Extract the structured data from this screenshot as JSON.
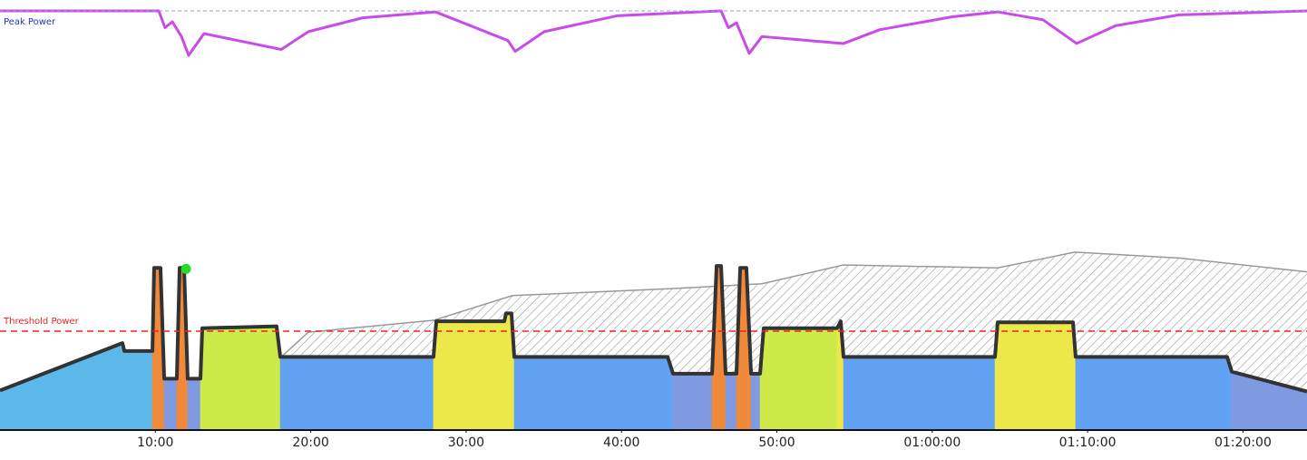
{
  "chart_data": {
    "type": "area",
    "xlim": [
      0,
      84.12
    ],
    "ylim": [
      0,
      435
    ],
    "xticks": [
      {
        "value": 10,
        "label": "10:00"
      },
      {
        "value": 20,
        "label": "20:00"
      },
      {
        "value": 30,
        "label": "30:00"
      },
      {
        "value": 40,
        "label": "40:00"
      },
      {
        "value": 50,
        "label": "50:00"
      },
      {
        "value": 60,
        "label": "01:00:00"
      },
      {
        "value": 70,
        "label": "01:10:00"
      },
      {
        "value": 80,
        "label": "01:20:00"
      }
    ],
    "reference_lines": [
      {
        "label": "Peak Power",
        "value": 424,
        "color": "#9aa0c8",
        "label_color": "#2233cc"
      },
      {
        "label": "Threshold Power",
        "value": 100,
        "color": "#ee2222",
        "label_color": "#ee2222"
      }
    ],
    "series": [
      {
        "style": "hatch",
        "color": "#999999",
        "x": [
          18.1,
          19.85,
          27.9,
          32.98,
          43.2,
          49.04,
          54.29,
          64.21,
          69.18,
          75.89,
          84.12
        ],
        "values": [
          74,
          99,
          111,
          136,
          143,
          148,
          167,
          164,
          180,
          174,
          160
        ]
      },
      {
        "style": "zones",
        "color": "#333333",
        "x": [
          0,
          7.88,
          8.0,
          9.81,
          9.92,
          10.33,
          10.57,
          11.38,
          11.56,
          11.85,
          12.08,
          12.9,
          13.02,
          17.8,
          18.04,
          27.9,
          28.08,
          32.46,
          32.57,
          32.92,
          33.1,
          42.97,
          43.32,
          45.83,
          46.12,
          46.41,
          46.7,
          47.4,
          47.64,
          48.04,
          48.34,
          48.92,
          49.15,
          53.88,
          54.11,
          54.29,
          64.04,
          64.21,
          69.06,
          69.23,
          78.98,
          79.28,
          84.12
        ],
        "values": [
          40,
          88,
          80,
          80,
          164,
          164,
          52,
          52,
          164,
          164,
          52,
          52,
          103,
          105,
          74,
          74,
          110,
          110,
          118,
          118,
          74,
          74,
          57,
          57,
          166,
          166,
          57,
          57,
          164,
          164,
          57,
          57,
          103,
          103,
          110,
          74,
          74,
          109,
          109,
          74,
          74,
          59,
          39
        ]
      },
      {
        "style": "line",
        "color": "#c84ce8",
        "x": [
          0,
          10.22,
          10.62,
          11.09,
          11.68,
          12.14,
          13.13,
          18.1,
          19.85,
          23.35,
          28.02,
          32.69,
          33.16,
          35.03,
          39.7,
          46.41,
          46.88,
          47.4,
          48.22,
          49.04,
          54.29,
          56.63,
          61.3,
          64.21,
          67.13,
          69.29,
          71.8,
          75.89,
          84.12
        ],
        "values": [
          424,
          424,
          407,
          413,
          398,
          379,
          401,
          385,
          403,
          417,
          423,
          394,
          383,
          403,
          419,
          424,
          407,
          412,
          381,
          398,
          391,
          405,
          418,
          423,
          415,
          391,
          409,
          420,
          424
        ]
      }
    ],
    "highlight": {
      "x": 11.97,
      "value": 163,
      "color": "#22dd22"
    }
  }
}
